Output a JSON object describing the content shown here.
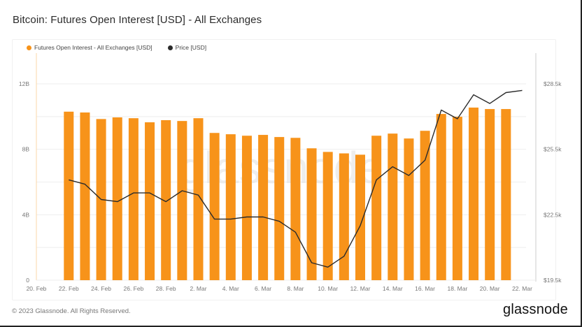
{
  "header": {
    "title": "Bitcoin: Futures Open Interest [USD] - All Exchanges"
  },
  "legend": {
    "items": [
      {
        "label": "Futures Open Interest - All Exchanges [USD]",
        "color": "#f7931a"
      },
      {
        "label": "Price [USD]",
        "color": "#2b2b2b"
      }
    ]
  },
  "footer": {
    "copyright": "© 2023 Glassnode. All Rights Reserved.",
    "brand": "glassnode"
  },
  "watermark": "glassnode",
  "chart_data": {
    "type": "bar",
    "title": "Bitcoin: Futures Open Interest [USD] - All Exchanges",
    "xlabel": "",
    "ylabel": "Futures Open Interest [USD]",
    "y2label": "Price [USD]",
    "ylim": [
      0,
      12000000000
    ],
    "y2lim": [
      19500,
      28500
    ],
    "grid": true,
    "legend_position": "top-left",
    "x_tick_labels": [
      "20. Feb",
      "22. Feb",
      "24. Feb",
      "26. Feb",
      "28. Feb",
      "2. Mar",
      "4. Mar",
      "6. Mar",
      "8. Mar",
      "10. Mar",
      "12. Mar",
      "14. Mar",
      "16. Mar",
      "18. Mar",
      "20. Mar",
      "22. Mar"
    ],
    "y_tick_labels": [
      "0",
      "4B",
      "8B",
      "12B"
    ],
    "y2_tick_labels": [
      "$19.5k",
      "$22.5k",
      "$25.5k",
      "$28.5k"
    ],
    "categories": [
      "22 Feb",
      "23 Feb",
      "24 Feb",
      "25 Feb",
      "26 Feb",
      "27 Feb",
      "28 Feb",
      "1 Mar",
      "2 Mar",
      "3 Mar",
      "4 Mar",
      "5 Mar",
      "6 Mar",
      "7 Mar",
      "8 Mar",
      "9 Mar",
      "10 Mar",
      "11 Mar",
      "12 Mar",
      "13 Mar",
      "14 Mar",
      "15 Mar",
      "16 Mar",
      "17 Mar",
      "18 Mar",
      "19 Mar",
      "20 Mar",
      "21 Mar",
      "22 Mar"
    ],
    "series": [
      {
        "name": "Futures Open Interest - All Exchanges [USD]",
        "type": "bar",
        "color": "#f7931a",
        "axis": "left",
        "values": [
          10300000000,
          10250000000,
          9850000000,
          9950000000,
          9900000000,
          9650000000,
          9780000000,
          9730000000,
          9900000000,
          9000000000,
          8920000000,
          8830000000,
          8880000000,
          8750000000,
          8700000000,
          8060000000,
          7840000000,
          7750000000,
          7670000000,
          8830000000,
          8960000000,
          8660000000,
          9130000000,
          10160000000,
          9990000000,
          10550000000,
          10460000000,
          10460000000,
          null
        ]
      },
      {
        "name": "Price [USD]",
        "type": "line",
        "color": "#2b2b2b",
        "axis": "right",
        "values": [
          24100,
          23900,
          23200,
          23100,
          23500,
          23500,
          23100,
          23600,
          23400,
          22300,
          22300,
          22400,
          22400,
          22200,
          21700,
          20300,
          20100,
          20600,
          22000,
          24100,
          24700,
          24300,
          25000,
          27300,
          26900,
          28000,
          27600,
          28100,
          28200
        ]
      }
    ]
  }
}
